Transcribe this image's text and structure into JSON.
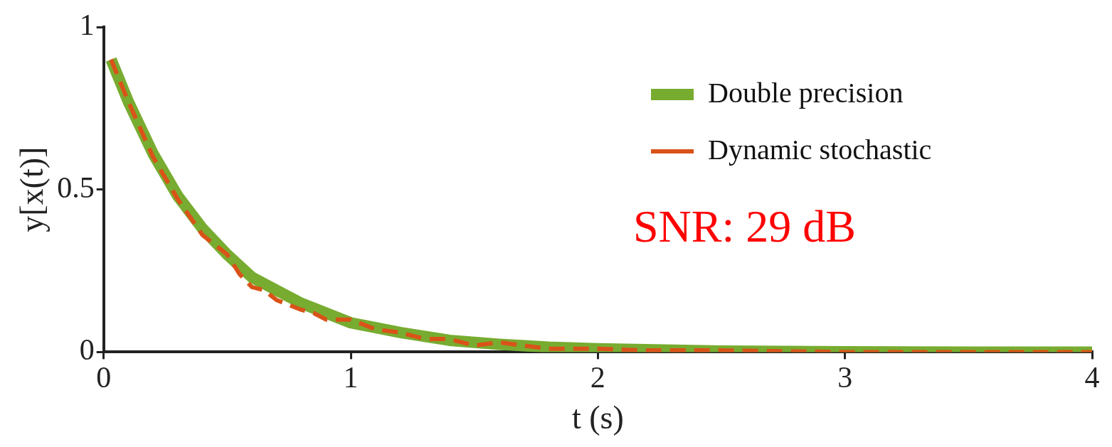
{
  "chart_data": {
    "type": "line",
    "xlabel": "t (s)",
    "ylabel": "y[x(t)]",
    "xlim": [
      0,
      4
    ],
    "xticks": [
      0,
      1,
      2,
      3,
      4
    ],
    "ylim": [
      0,
      1
    ],
    "yticks": [
      0,
      0.5,
      1
    ],
    "grid": false,
    "legend": "top right",
    "annotations": [
      "SNR: 29 dB"
    ],
    "series": [
      {
        "name": "Double precision",
        "color": "#77ac30",
        "line_style": "solid",
        "x": [
          0.03,
          0.1,
          0.2,
          0.3,
          0.4,
          0.5,
          0.6,
          0.7,
          0.8,
          0.9,
          1.0,
          1.2,
          1.4,
          1.6,
          1.8,
          2.0,
          2.5,
          3.0,
          3.5,
          4.0
        ],
        "values": [
          0.9,
          0.77,
          0.61,
          0.48,
          0.38,
          0.3,
          0.23,
          0.19,
          0.15,
          0.12,
          0.09,
          0.06,
          0.036,
          0.024,
          0.015,
          0.01,
          0.003,
          0.001,
          0,
          0
        ]
      },
      {
        "name": "Dynamic stochastic",
        "color": "#d95319",
        "line_style": "dashed",
        "x": [
          0.03,
          0.1,
          0.2,
          0.3,
          0.4,
          0.5,
          0.55,
          0.6,
          0.65,
          0.7,
          0.8,
          0.85,
          0.9,
          1.0,
          1.1,
          1.2,
          1.3,
          1.4,
          1.5,
          1.6,
          1.8,
          2.0,
          2.2,
          2.5,
          3.0,
          3.5,
          4.0
        ],
        "values": [
          0.9,
          0.77,
          0.6,
          0.47,
          0.36,
          0.3,
          0.24,
          0.2,
          0.19,
          0.16,
          0.13,
          0.12,
          0.1,
          0.1,
          0.07,
          0.06,
          0.04,
          0.04,
          0.02,
          0.03,
          0.01,
          0.01,
          0.005,
          0.005,
          0,
          0,
          0
        ]
      }
    ]
  }
}
